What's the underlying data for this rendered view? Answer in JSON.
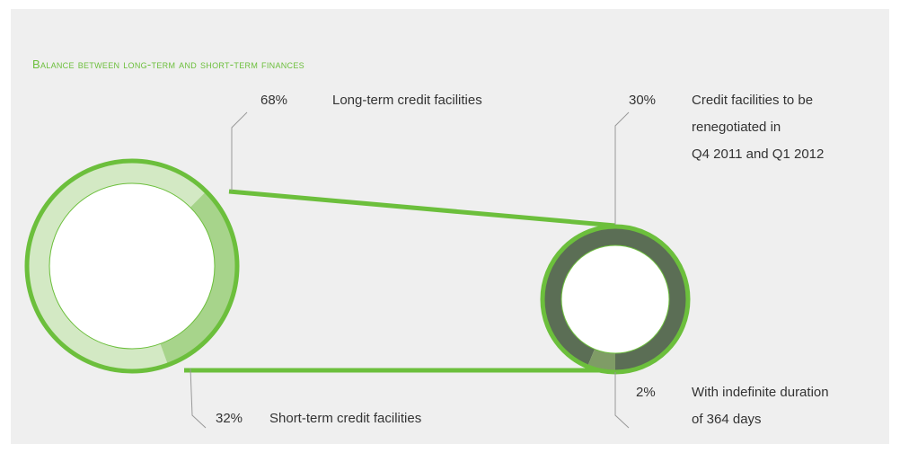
{
  "title": "Balance between long-term and short-term finances",
  "chart_data": [
    {
      "type": "donut",
      "categories": [
        "Long-term credit facilities",
        "Short-term credit facilities"
      ],
      "values": [
        68,
        32
      ],
      "value_labels": [
        "68%",
        "32%"
      ],
      "colors": [
        "#d3e9c4",
        "#a7d48b"
      ]
    },
    {
      "type": "donut",
      "categories": [
        "Credit facilities to be\nrenegotiated in\nQ4 2011 and Q1 2012",
        "With indefinite duration\nof 364 days"
      ],
      "values": [
        30,
        2
      ],
      "value_labels": [
        "30%",
        "2%"
      ],
      "colors": [
        "#5b6e55",
        "#7f9c66"
      ]
    }
  ]
}
